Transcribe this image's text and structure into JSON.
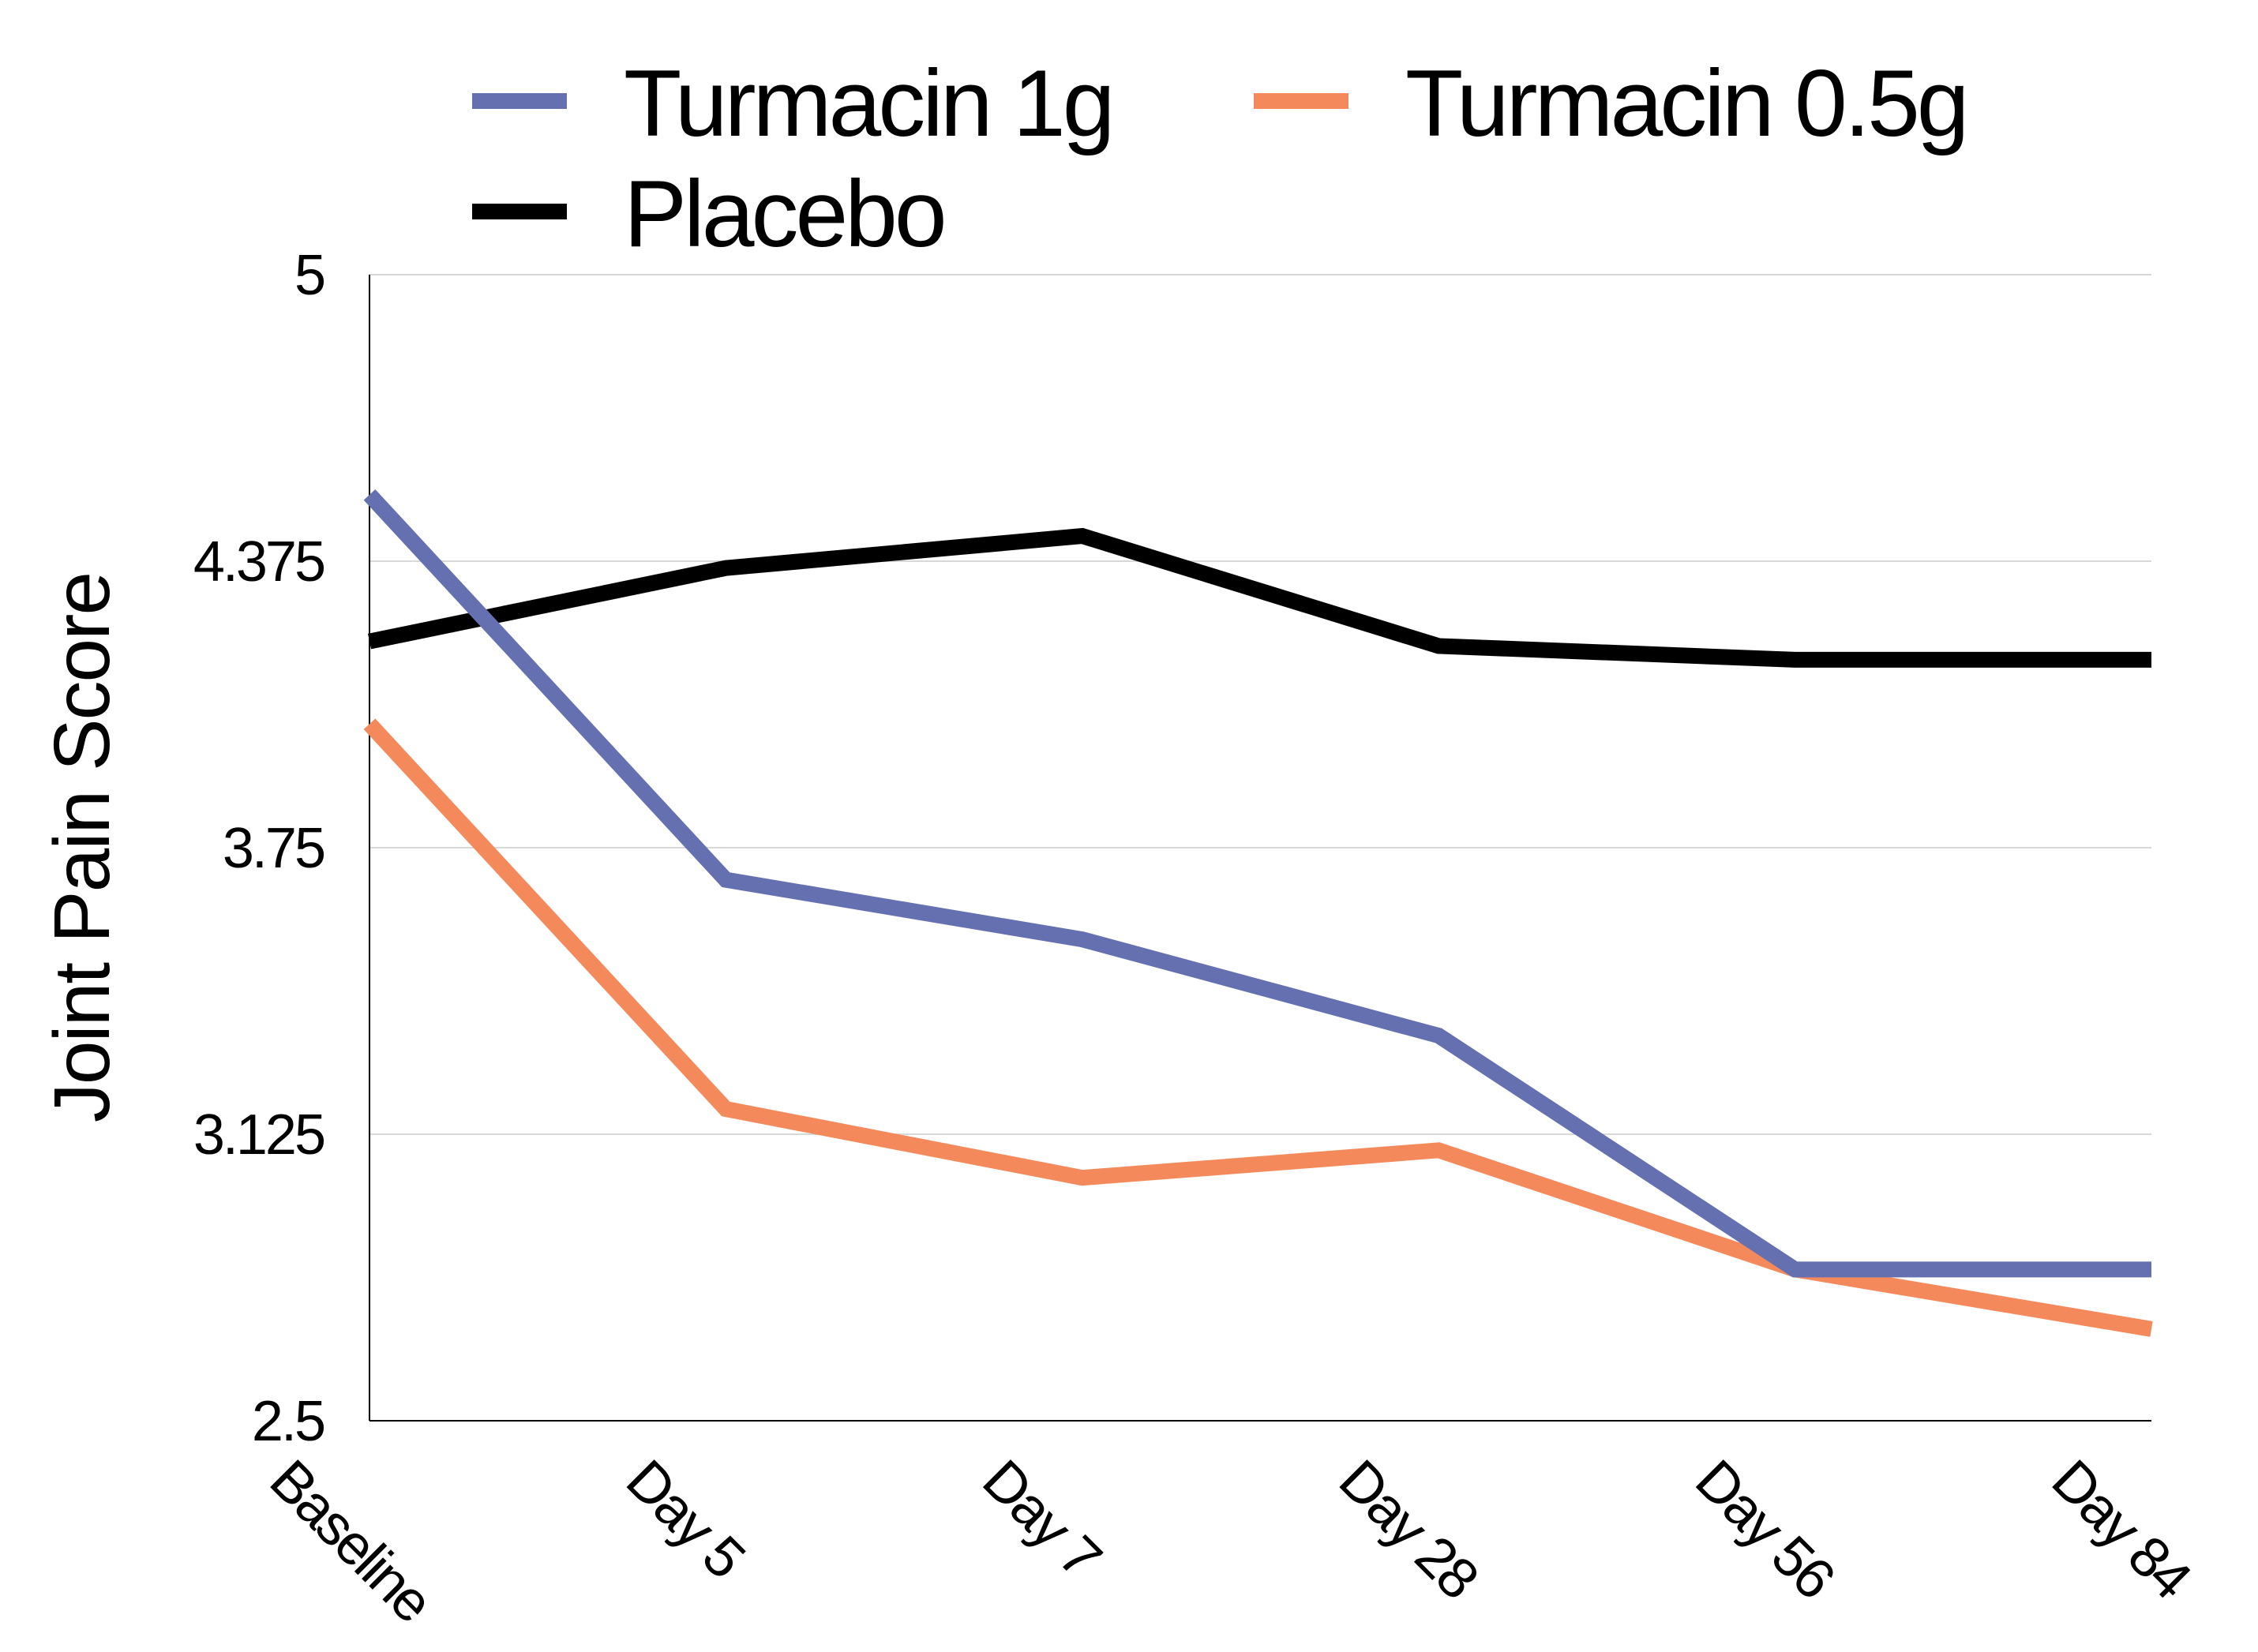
{
  "chart_data": {
    "type": "line",
    "title": "",
    "xlabel": "",
    "ylabel": "Joint Pain Score",
    "categories": [
      "Baseline",
      "Day 5",
      "Day 7",
      "Day 28",
      "Day 56",
      "Day 84"
    ],
    "ylim": [
      2.5,
      5
    ],
    "yticks": [
      "2.5",
      "3.125",
      "3.75",
      "4.375",
      "5"
    ],
    "grid": true,
    "legend_position": "top",
    "series": [
      {
        "name": "Turmacin 1g",
        "color": "#6470b0",
        "values": [
          4.52,
          3.68,
          3.55,
          3.34,
          2.83,
          2.83
        ]
      },
      {
        "name": "Turmacin 0.5g",
        "color": "#f48a5c",
        "values": [
          4.02,
          3.18,
          3.03,
          3.09,
          2.83,
          2.7
        ]
      },
      {
        "name": "Placebo",
        "color": "#000000",
        "values": [
          4.2,
          4.36,
          4.43,
          4.19,
          4.16,
          4.16
        ]
      }
    ]
  }
}
